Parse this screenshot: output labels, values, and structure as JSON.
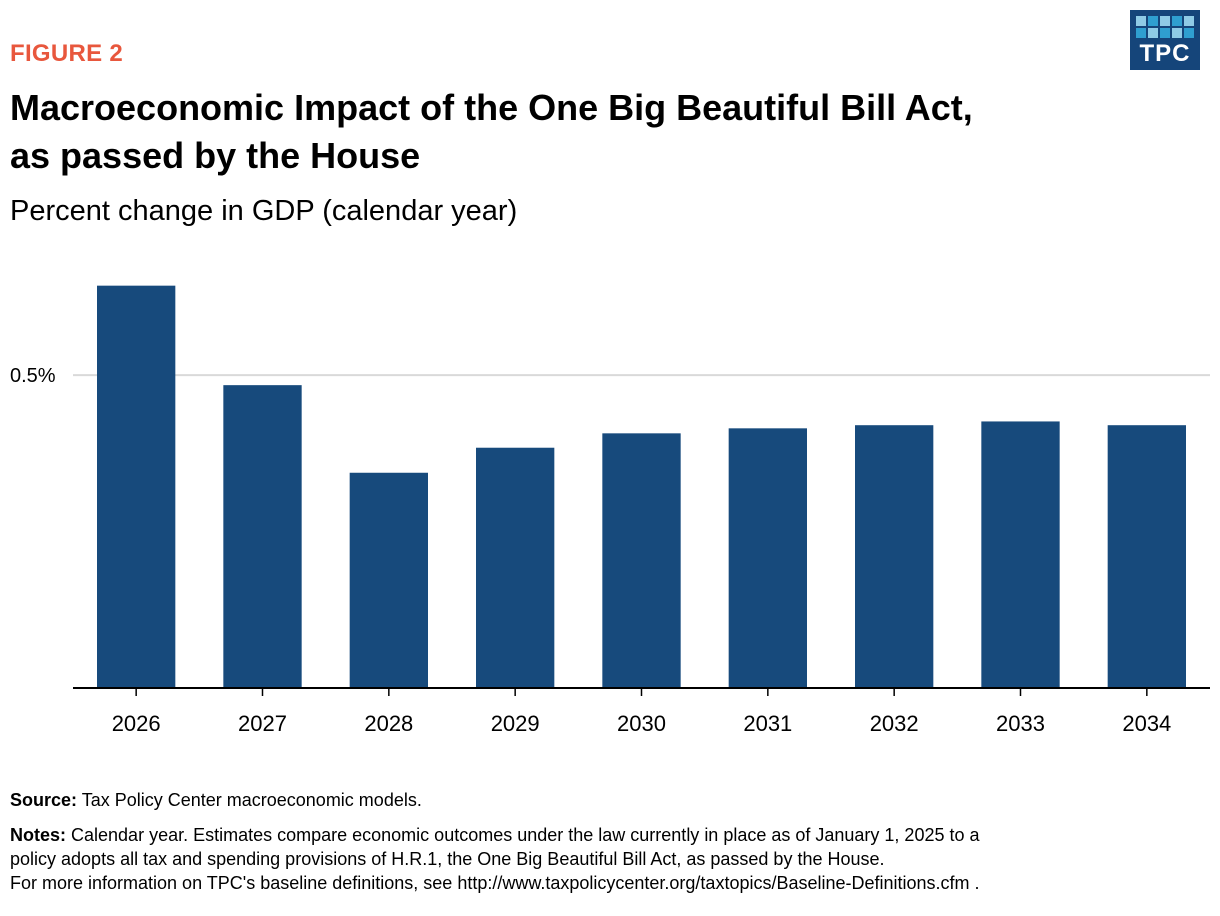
{
  "figure_label": "FIGURE 2",
  "title_line1": "Macroeconomic Impact of the One Big Beautiful Bill Act,",
  "title_line2": "as passed by the House",
  "subtitle": "Percent change in GDP (calendar year)",
  "logo_text": "TPC",
  "colors": {
    "bar": "#174a7c",
    "accent": "#e8573d",
    "gridline": "#d9d9d9",
    "axis": "#000000"
  },
  "source_label": "Source:",
  "source_text": " Tax Policy Center macroeconomic models.",
  "notes_label": "Notes:",
  "notes_line1": " Calendar year. Estimates compare economic outcomes under the law currently in place as of January 1, 2025 to a",
  "notes_line2": "policy adopts all tax and spending provisions of H.R.1, the One Big Beautiful Bill Act, as passed by the House.",
  "notes_line3": "For more information on TPC's baseline definitions, see http://www.taxpolicycenter.org/taxtopics/Baseline-Definitions.cfm .",
  "chart_data": {
    "type": "bar",
    "title": "Macroeconomic Impact of the One Big Beautiful Bill Act, as passed by the House",
    "ylabel": "Percent change in GDP (calendar year)",
    "xlabel": "",
    "categories": [
      "2026",
      "2027",
      "2028",
      "2029",
      "2030",
      "2031",
      "2032",
      "2033",
      "2034"
    ],
    "values": [
      0.643,
      0.484,
      0.344,
      0.384,
      0.407,
      0.415,
      0.42,
      0.426,
      0.42
    ],
    "ylim": [
      0,
      0.7
    ],
    "yticks": [
      0.5
    ],
    "ytick_labels": [
      "0.5%"
    ],
    "grid": true,
    "legend": "none"
  }
}
